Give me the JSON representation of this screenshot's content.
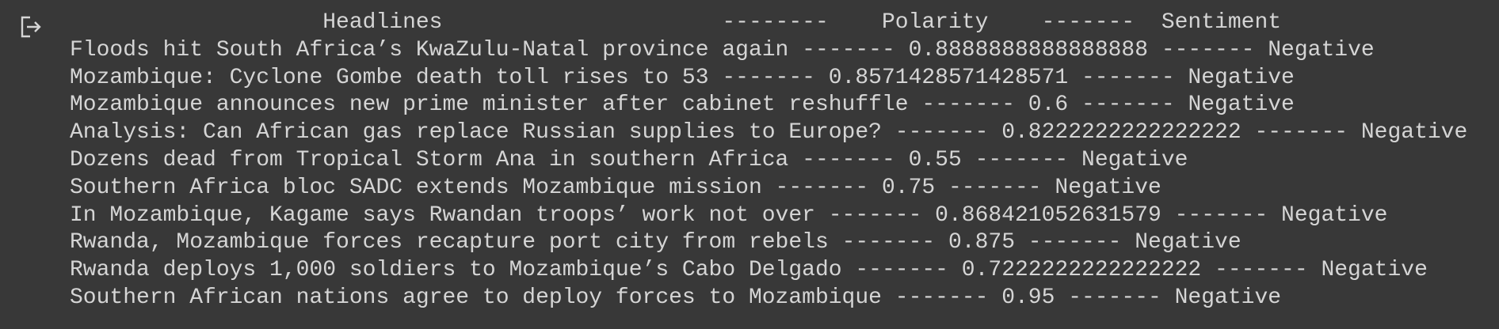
{
  "output": {
    "header": "                   Headlines                     --------    Polarity    -------  Sentiment",
    "rows": [
      {
        "headline": "Floods hit South Africa’s KwaZulu-Natal province again",
        "separator_1": "-------",
        "polarity": "0.8888888888888888",
        "separator_2": "-------",
        "sentiment": "Negative"
      },
      {
        "headline": "Mozambique: Cyclone Gombe death toll rises to 53",
        "separator_1": "-------",
        "polarity": "0.8571428571428571",
        "separator_2": "-------",
        "sentiment": "Negative"
      },
      {
        "headline": "Mozambique announces new prime minister after cabinet reshuffle",
        "separator_1": "-------",
        "polarity": "0.6",
        "separator_2": "-------",
        "sentiment": "Negative"
      },
      {
        "headline": "Analysis: Can African gas replace Russian supplies to Europe?",
        "separator_1": "-------",
        "polarity": "0.8222222222222222",
        "separator_2": "-------",
        "sentiment": "Negative"
      },
      {
        "headline": "Dozens dead from Tropical Storm Ana in southern Africa",
        "separator_1": "-------",
        "polarity": "0.55",
        "separator_2": "-------",
        "sentiment": "Negative"
      },
      {
        "headline": "Southern Africa bloc SADC extends Mozambique mission",
        "separator_1": "-------",
        "polarity": "0.75",
        "separator_2": "-------",
        "sentiment": "Negative"
      },
      {
        "headline": "In Mozambique, Kagame says Rwandan troops’ work not over",
        "separator_1": "-------",
        "polarity": "0.868421052631579",
        "separator_2": "-------",
        "sentiment": "Negative"
      },
      {
        "headline": "Rwanda, Mozambique forces recapture port city from rebels",
        "separator_1": "-------",
        "polarity": "0.875",
        "separator_2": "-------",
        "sentiment": "Negative"
      },
      {
        "headline": "Rwanda deploys 1,000 soldiers to Mozambique’s Cabo Delgado",
        "separator_1": "-------",
        "polarity": "0.7222222222222222",
        "separator_2": "-------",
        "sentiment": "Negative"
      },
      {
        "headline": "Southern African nations agree to deploy forces to Mozambique",
        "separator_1": "-------",
        "polarity": "0.95",
        "separator_2": "-------",
        "sentiment": "Negative"
      }
    ]
  }
}
